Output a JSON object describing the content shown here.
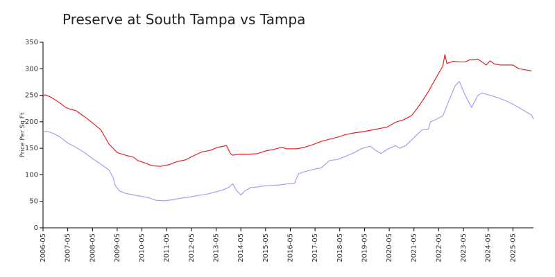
{
  "chart_data": {
    "type": "line",
    "title": "Preserve at South Tampa vs Tampa",
    "xlabel": "",
    "ylabel": "Price Per Sq Ft",
    "ylim": [
      0,
      350
    ],
    "yticks": [
      0,
      50,
      100,
      150,
      200,
      250,
      300,
      350
    ],
    "xlim": [
      "2006-05",
      "2026-03"
    ],
    "xticks": [
      "2006-05",
      "2007-05",
      "2008-05",
      "2009-05",
      "2010-05",
      "2011-05",
      "2012-05",
      "2013-05",
      "2014-05",
      "2015-05",
      "2016-05",
      "2017-05",
      "2018-05",
      "2019-05",
      "2020-05",
      "2021-05",
      "2022-05",
      "2023-05",
      "2024-05",
      "2025-05"
    ],
    "legend": "none",
    "grid": false,
    "series": [
      {
        "color": "#e82020",
        "points": [
          [
            "2006-05",
            248
          ],
          [
            "2006-06",
            251
          ],
          [
            "2006-09",
            246
          ],
          [
            "2007-01",
            236
          ],
          [
            "2007-04",
            227
          ],
          [
            "2007-06",
            224
          ],
          [
            "2007-09",
            221
          ],
          [
            "2008-01",
            210
          ],
          [
            "2008-05",
            198
          ],
          [
            "2008-09",
            185
          ],
          [
            "2009-01",
            158
          ],
          [
            "2009-05",
            142
          ],
          [
            "2009-09",
            137
          ],
          [
            "2010-01",
            133
          ],
          [
            "2010-03",
            127
          ],
          [
            "2010-06",
            123
          ],
          [
            "2010-10",
            117
          ],
          [
            "2011-02",
            116
          ],
          [
            "2011-06",
            119
          ],
          [
            "2011-10",
            125
          ],
          [
            "2012-02",
            128
          ],
          [
            "2012-06",
            136
          ],
          [
            "2012-10",
            143
          ],
          [
            "2013-02",
            146
          ],
          [
            "2013-06",
            152
          ],
          [
            "2013-10",
            155
          ],
          [
            "2013-12",
            140
          ],
          [
            "2014-01",
            137
          ],
          [
            "2014-04",
            139
          ],
          [
            "2014-09",
            139
          ],
          [
            "2015-01",
            140
          ],
          [
            "2015-05",
            145
          ],
          [
            "2015-09",
            148
          ],
          [
            "2016-01",
            152
          ],
          [
            "2016-03",
            149
          ],
          [
            "2016-08",
            149
          ],
          [
            "2016-12",
            152
          ],
          [
            "2017-04",
            157
          ],
          [
            "2017-08",
            163
          ],
          [
            "2017-12",
            167
          ],
          [
            "2018-04",
            171
          ],
          [
            "2018-08",
            176
          ],
          [
            "2018-12",
            179
          ],
          [
            "2019-04",
            181
          ],
          [
            "2019-08",
            184
          ],
          [
            "2019-12",
            187
          ],
          [
            "2020-04",
            190
          ],
          [
            "2020-08",
            199
          ],
          [
            "2020-12",
            204
          ],
          [
            "2021-04",
            212
          ],
          [
            "2021-08",
            233
          ],
          [
            "2021-12",
            257
          ],
          [
            "2022-04",
            285
          ],
          [
            "2022-07",
            305
          ],
          [
            "2022-08",
            327
          ],
          [
            "2022-09",
            310
          ],
          [
            "2022-12",
            314
          ],
          [
            "2023-03",
            313
          ],
          [
            "2023-06",
            313
          ],
          [
            "2023-08",
            317
          ],
          [
            "2023-12",
            318
          ],
          [
            "2024-02",
            313
          ],
          [
            "2024-04",
            307
          ],
          [
            "2024-06",
            315
          ],
          [
            "2024-08",
            309
          ],
          [
            "2024-11",
            307
          ],
          [
            "2025-02",
            307
          ],
          [
            "2025-05",
            307
          ],
          [
            "2025-08",
            300
          ],
          [
            "2025-11",
            298
          ],
          [
            "2026-02",
            296
          ]
        ]
      },
      {
        "color": "#a0a0f0",
        "points": [
          [
            "2006-05",
            181
          ],
          [
            "2006-07",
            182
          ],
          [
            "2006-10",
            178
          ],
          [
            "2007-01",
            172
          ],
          [
            "2007-05",
            160
          ],
          [
            "2007-09",
            152
          ],
          [
            "2008-01",
            142
          ],
          [
            "2008-05",
            131
          ],
          [
            "2008-09",
            120
          ],
          [
            "2009-01",
            109
          ],
          [
            "2009-03",
            95
          ],
          [
            "2009-04",
            80
          ],
          [
            "2009-06",
            70
          ],
          [
            "2009-09",
            65
          ],
          [
            "2010-01",
            62
          ],
          [
            "2010-04",
            60
          ],
          [
            "2010-08",
            57
          ],
          [
            "2010-12",
            52
          ],
          [
            "2011-04",
            51
          ],
          [
            "2011-08",
            53
          ],
          [
            "2011-12",
            56
          ],
          [
            "2012-04",
            58
          ],
          [
            "2012-08",
            61
          ],
          [
            "2012-12",
            63
          ],
          [
            "2013-04",
            67
          ],
          [
            "2013-08",
            71
          ],
          [
            "2013-11",
            76
          ],
          [
            "2014-01",
            83
          ],
          [
            "2014-03",
            70
          ],
          [
            "2014-05",
            62
          ],
          [
            "2014-07",
            70
          ],
          [
            "2014-10",
            76
          ],
          [
            "2015-01",
            77
          ],
          [
            "2015-04",
            79
          ],
          [
            "2015-08",
            80
          ],
          [
            "2015-12",
            81
          ],
          [
            "2016-04",
            83
          ],
          [
            "2016-07",
            84
          ],
          [
            "2016-09",
            102
          ],
          [
            "2016-12",
            106
          ],
          [
            "2017-04",
            110
          ],
          [
            "2017-08",
            113
          ],
          [
            "2017-12",
            127
          ],
          [
            "2018-04",
            129
          ],
          [
            "2018-08",
            135
          ],
          [
            "2018-12",
            142
          ],
          [
            "2019-04",
            150
          ],
          [
            "2019-08",
            154
          ],
          [
            "2019-10",
            147
          ],
          [
            "2020-01",
            140
          ],
          [
            "2020-04",
            148
          ],
          [
            "2020-08",
            155
          ],
          [
            "2020-10",
            150
          ],
          [
            "2021-01",
            155
          ],
          [
            "2021-05",
            170
          ],
          [
            "2021-09",
            185
          ],
          [
            "2021-12",
            186
          ],
          [
            "2022-01",
            200
          ],
          [
            "2022-04",
            205
          ],
          [
            "2022-07",
            211
          ],
          [
            "2022-10",
            240
          ],
          [
            "2023-01",
            268
          ],
          [
            "2023-03",
            276
          ],
          [
            "2023-06",
            249
          ],
          [
            "2023-09",
            227
          ],
          [
            "2023-12",
            250
          ],
          [
            "2024-02",
            254
          ],
          [
            "2024-06",
            250
          ],
          [
            "2024-10",
            245
          ],
          [
            "2025-02",
            239
          ],
          [
            "2025-06",
            231
          ],
          [
            "2025-10",
            222
          ],
          [
            "2026-02",
            213
          ],
          [
            "2026-03",
            205
          ]
        ]
      }
    ]
  }
}
